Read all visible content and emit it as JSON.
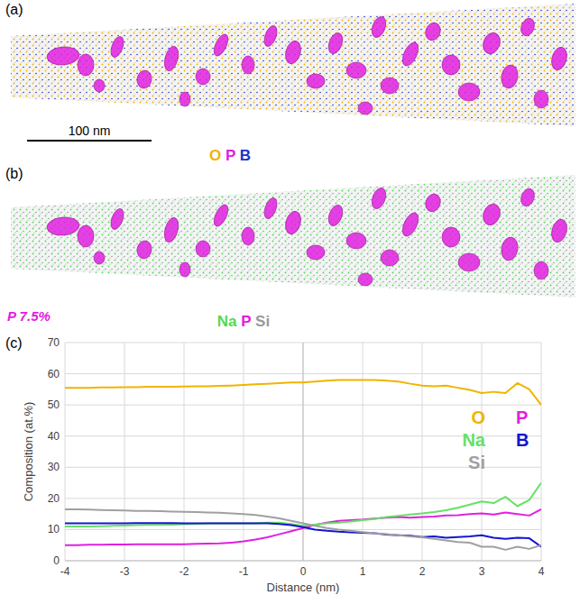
{
  "chart_data": {
    "type": "line",
    "panel_label": "(c)",
    "x_label": "Distance (nm)",
    "y_label": "Composition (at.%)",
    "x": [
      -4,
      -3.8,
      -3.6,
      -3.4,
      -3.2,
      -3,
      -2.8,
      -2.6,
      -2.4,
      -2.2,
      -2,
      -1.8,
      -1.6,
      -1.4,
      -1.2,
      -1,
      -0.8,
      -0.6,
      -0.4,
      -0.2,
      0,
      0.2,
      0.4,
      0.6,
      0.8,
      1,
      1.2,
      1.4,
      1.6,
      1.8,
      2,
      2.2,
      2.4,
      2.6,
      2.8,
      3,
      3.2,
      3.4,
      3.6,
      3.8,
      4
    ],
    "series": [
      {
        "name": "O",
        "color": "#f0b400",
        "values": [
          55.5,
          55.5,
          55.5,
          55.6,
          55.6,
          55.7,
          55.7,
          55.8,
          55.8,
          55.8,
          55.9,
          56,
          56,
          56.1,
          56.2,
          56.4,
          56.6,
          56.8,
          57,
          57.2,
          57.2,
          57.5,
          57.8,
          58,
          58,
          58,
          58,
          57.8,
          57.5,
          56.8,
          56.2,
          56,
          56.2,
          55.5,
          54.8,
          53.8,
          54.2,
          53.8,
          57,
          55,
          50
        ]
      },
      {
        "name": "P",
        "color": "#e020e0",
        "values": [
          5,
          5,
          5.1,
          5.1,
          5.2,
          5.2,
          5.3,
          5.3,
          5.3,
          5.3,
          5.3,
          5.4,
          5.5,
          5.6,
          5.8,
          6.2,
          6.8,
          7.5,
          8.5,
          9.5,
          10.5,
          11.5,
          12.2,
          12.8,
          13,
          13.2,
          13.5,
          13.8,
          14,
          13.8,
          14,
          14.2,
          14.5,
          14.6,
          15,
          15.2,
          14.8,
          15.5,
          15,
          14.5,
          16.5
        ]
      },
      {
        "name": "Na",
        "color": "#66e066",
        "values": [
          11,
          11,
          11,
          11.1,
          11.2,
          11.3,
          11.4,
          11.5,
          11.5,
          11.6,
          11.7,
          11.8,
          12,
          12,
          12,
          12,
          12,
          12.2,
          12.2,
          11.8,
          11.2,
          11.6,
          12,
          12.2,
          12.6,
          13,
          13.4,
          14,
          14.4,
          14.8,
          15.2,
          15.6,
          16.2,
          17,
          18,
          19,
          18.5,
          20.5,
          17.5,
          19.5,
          25
        ]
      },
      {
        "name": "B",
        "color": "#1515d0",
        "values": [
          12,
          12,
          12,
          12,
          12,
          12,
          12.1,
          12.1,
          12.1,
          12.1,
          12,
          12,
          12,
          12,
          12,
          12,
          12,
          12,
          11.8,
          11.4,
          10.8,
          10,
          9.6,
          9.3,
          9.1,
          9,
          8.8,
          8.4,
          8.2,
          8,
          7.6,
          7.8,
          7.4,
          7.6,
          7.8,
          8.2,
          7.4,
          7,
          7.4,
          7.2,
          4.5
        ]
      },
      {
        "name": "Si",
        "color": "#a0a0a0",
        "values": [
          16.5,
          16.5,
          16.4,
          16.3,
          16.2,
          16.1,
          16,
          16,
          15.9,
          15.8,
          15.7,
          15.6,
          15.5,
          15.4,
          15.2,
          15,
          14.7,
          14.2,
          13.6,
          12.8,
          12,
          11.2,
          10.5,
          10,
          9.6,
          9.2,
          8.8,
          8.5,
          8.2,
          7.8,
          7.5,
          7,
          6.5,
          6,
          5.8,
          4.5,
          4.5,
          3.5,
          4.5,
          3.8,
          5
        ]
      }
    ],
    "xlim": [
      -4,
      4
    ],
    "xticks": [
      -4,
      -3,
      -2,
      -1,
      0,
      1,
      2,
      3,
      4
    ],
    "ylim": [
      0,
      70
    ],
    "yticks": [
      0,
      10,
      20,
      30,
      40,
      50,
      60,
      70
    ],
    "grid": true,
    "legend": "right"
  },
  "panels": [
    {
      "label": "(a)",
      "scale_bar": "100 nm",
      "legend": [
        {
          "text": "O",
          "color": "#f0b400"
        },
        {
          "text": "P",
          "color": "#e020e0"
        },
        {
          "text": "B",
          "color": "#2030d0"
        }
      ]
    },
    {
      "label": "(b)",
      "note": "P 7.5%",
      "note_color": "#e020e0",
      "legend": [
        {
          "text": "Na",
          "color": "#55d855"
        },
        {
          "text": "P",
          "color": "#e020e0"
        },
        {
          "text": "Si",
          "color": "#999999"
        }
      ]
    }
  ]
}
